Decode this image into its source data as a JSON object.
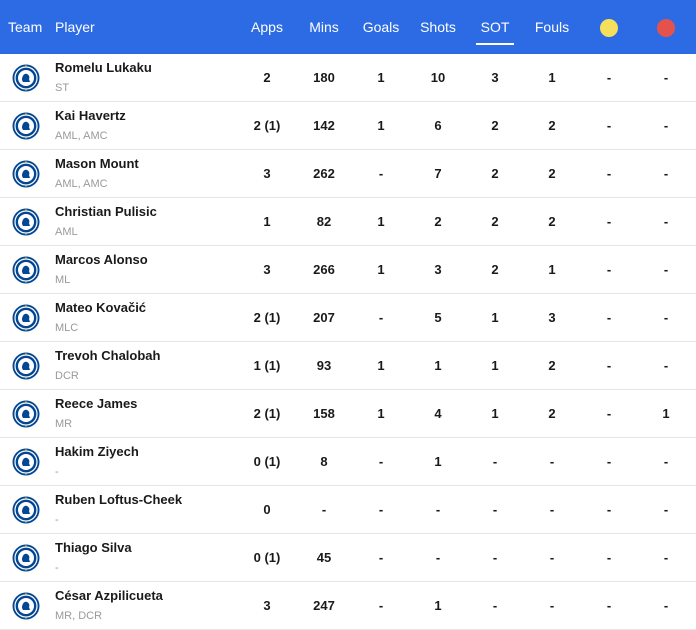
{
  "header": {
    "team": "Team",
    "player": "Player",
    "apps": "Apps",
    "mins": "Mins",
    "goals": "Goals",
    "shots": "Shots",
    "sot": "SOT",
    "fouls": "Fouls",
    "yellow_icon": "yellow-card-icon",
    "red_icon": "red-card-icon"
  },
  "colors": {
    "header_bg": "#2d6be4",
    "yellow_card": "#f6e05b",
    "red_card": "#e5524b",
    "crest_blue": "#034694"
  },
  "rows": [
    {
      "name": "Romelu Lukaku",
      "pos": "ST",
      "apps": "2",
      "mins": "180",
      "goals": "1",
      "shots": "10",
      "sot": "3",
      "fouls": "1",
      "yellow": "-",
      "red": "-"
    },
    {
      "name": "Kai Havertz",
      "pos": "AML, AMC",
      "apps": "2 (1)",
      "mins": "142",
      "goals": "1",
      "shots": "6",
      "sot": "2",
      "fouls": "2",
      "yellow": "-",
      "red": "-"
    },
    {
      "name": "Mason Mount",
      "pos": "AML, AMC",
      "apps": "3",
      "mins": "262",
      "goals": "-",
      "shots": "7",
      "sot": "2",
      "fouls": "2",
      "yellow": "-",
      "red": "-"
    },
    {
      "name": "Christian Pulisic",
      "pos": "AML",
      "apps": "1",
      "mins": "82",
      "goals": "1",
      "shots": "2",
      "sot": "2",
      "fouls": "2",
      "yellow": "-",
      "red": "-"
    },
    {
      "name": "Marcos Alonso",
      "pos": "ML",
      "apps": "3",
      "mins": "266",
      "goals": "1",
      "shots": "3",
      "sot": "2",
      "fouls": "1",
      "yellow": "-",
      "red": "-"
    },
    {
      "name": "Mateo Kovačić",
      "pos": "MLC",
      "apps": "2 (1)",
      "mins": "207",
      "goals": "-",
      "shots": "5",
      "sot": "1",
      "fouls": "3",
      "yellow": "-",
      "red": "-"
    },
    {
      "name": "Trevoh Chalobah",
      "pos": "DCR",
      "apps": "1 (1)",
      "mins": "93",
      "goals": "1",
      "shots": "1",
      "sot": "1",
      "fouls": "2",
      "yellow": "-",
      "red": "-"
    },
    {
      "name": "Reece James",
      "pos": "MR",
      "apps": "2 (1)",
      "mins": "158",
      "goals": "1",
      "shots": "4",
      "sot": "1",
      "fouls": "2",
      "yellow": "-",
      "red": "1"
    },
    {
      "name": "Hakim Ziyech",
      "pos": "-",
      "apps": "0 (1)",
      "mins": "8",
      "goals": "-",
      "shots": "1",
      "sot": "-",
      "fouls": "-",
      "yellow": "-",
      "red": "-"
    },
    {
      "name": "Ruben Loftus-Cheek",
      "pos": "-",
      "apps": "0",
      "mins": "-",
      "goals": "-",
      "shots": "-",
      "sot": "-",
      "fouls": "-",
      "yellow": "-",
      "red": "-"
    },
    {
      "name": "Thiago Silva",
      "pos": "-",
      "apps": "0 (1)",
      "mins": "45",
      "goals": "-",
      "shots": "-",
      "sot": "-",
      "fouls": "-",
      "yellow": "-",
      "red": "-"
    },
    {
      "name": "César Azpilicueta",
      "pos": "MR, DCR",
      "apps": "3",
      "mins": "247",
      "goals": "-",
      "shots": "1",
      "sot": "-",
      "fouls": "-",
      "yellow": "-",
      "red": "-"
    }
  ]
}
